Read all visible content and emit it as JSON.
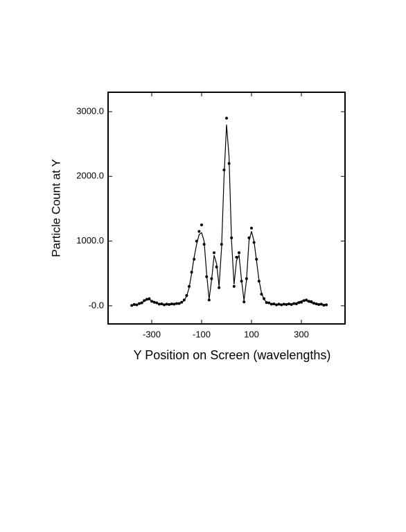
{
  "chart_data": {
    "type": "scatter",
    "xlabel": "Y Position on Screen (wavelengths)",
    "ylabel": "Particle Count at Y",
    "x": [
      -380,
      -370,
      -360,
      -350,
      -340,
      -330,
      -320,
      -310,
      -300,
      -290,
      -280,
      -270,
      -260,
      -250,
      -240,
      -230,
      -220,
      -210,
      -200,
      -190,
      -180,
      -170,
      -160,
      -150,
      -140,
      -130,
      -120,
      -110,
      -100,
      -90,
      -80,
      -70,
      -60,
      -50,
      -40,
      -30,
      -20,
      -10,
      0,
      10,
      20,
      30,
      40,
      50,
      60,
      70,
      80,
      90,
      100,
      110,
      120,
      130,
      140,
      150,
      160,
      170,
      180,
      190,
      200,
      210,
      220,
      230,
      240,
      250,
      260,
      270,
      280,
      290,
      300,
      310,
      320,
      330,
      340,
      350,
      360,
      370,
      380,
      390,
      400
    ],
    "series": [
      {
        "color": "#000000",
        "style": "markers",
        "values": [
          5,
          20,
          15,
          35,
          45,
          80,
          100,
          110,
          70,
          55,
          45,
          25,
          30,
          15,
          25,
          20,
          30,
          25,
          35,
          35,
          55,
          90,
          160,
          300,
          520,
          720,
          1000,
          1150,
          1250,
          950,
          450,
          90,
          420,
          820,
          600,
          280,
          950,
          2100,
          2900,
          2200,
          1050,
          300,
          750,
          820,
          380,
          60,
          420,
          1050,
          1200,
          980,
          720,
          380,
          180,
          110,
          50,
          45,
          25,
          30,
          15,
          25,
          15,
          25,
          20,
          30,
          20,
          35,
          30,
          50,
          55,
          80,
          90,
          70,
          65,
          40,
          30,
          20,
          25,
          10,
          15
        ]
      },
      {
        "color": "#000000",
        "style": "line",
        "values": [
          10,
          15,
          20,
          30,
          50,
          70,
          90,
          95,
          80,
          60,
          40,
          30,
          25,
          20,
          20,
          20,
          25,
          30,
          30,
          40,
          50,
          80,
          150,
          280,
          500,
          750,
          950,
          1100,
          1130,
          1000,
          500,
          100,
          400,
          780,
          650,
          300,
          900,
          2000,
          2800,
          2300,
          1000,
          330,
          700,
          780,
          400,
          80,
          400,
          1000,
          1150,
          1000,
          700,
          400,
          200,
          100,
          60,
          40,
          30,
          25,
          20,
          20,
          20,
          20,
          25,
          25,
          30,
          35,
          45,
          60,
          75,
          80,
          75,
          60,
          45,
          35,
          25,
          20,
          15,
          10,
          10
        ]
      }
    ],
    "xlim": [
      -475,
      475
    ],
    "xticks": [
      -300,
      -100,
      100,
      300
    ],
    "ylim": [
      -280,
      3300
    ],
    "yticks": [
      {
        "value": 0,
        "label": "-0.0"
      },
      {
        "value": 1000,
        "label": "1000.0"
      },
      {
        "value": 2000,
        "label": "2000.0"
      },
      {
        "value": 3000,
        "label": "3000.0"
      }
    ]
  }
}
